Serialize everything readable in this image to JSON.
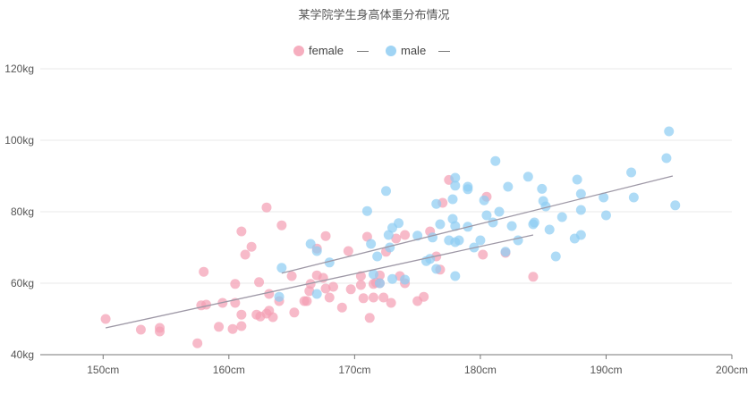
{
  "chart_data": {
    "type": "scatter",
    "title": "某学院学生身高体重分布情况",
    "xlabel": "",
    "ylabel": "",
    "x_unit": "cm",
    "y_unit": "kg",
    "xlim": [
      145,
      200
    ],
    "ylim": [
      40,
      120
    ],
    "x_ticks": [
      150,
      160,
      170,
      180,
      190,
      200
    ],
    "y_ticks": [
      40,
      60,
      80,
      100,
      120
    ],
    "x_tick_labels": [
      "150cm",
      "160cm",
      "170cm",
      "180cm",
      "190cm",
      "200cm"
    ],
    "y_tick_labels": [
      "40kg",
      "60kg",
      "80kg",
      "100kg",
      "120kg"
    ],
    "grid": "horizontal",
    "legend_position": "top-center",
    "legend_line_symbol": "—",
    "series": [
      {
        "name": "female",
        "color": "#f4a0b4",
        "trendline": {
          "x": [
            150.2,
            184.2
          ],
          "y": [
            47.5,
            73.5
          ]
        },
        "points": [
          [
            150.2,
            50.0
          ],
          [
            153.0,
            47.0
          ],
          [
            154.5,
            47.5
          ],
          [
            154.5,
            46.5
          ],
          [
            157.5,
            43.2
          ],
          [
            158.0,
            63.2
          ],
          [
            157.8,
            53.8
          ],
          [
            158.2,
            54.0
          ],
          [
            159.2,
            47.8
          ],
          [
            159.5,
            54.5
          ],
          [
            160.3,
            47.2
          ],
          [
            160.5,
            54.5
          ],
          [
            160.5,
            59.8
          ],
          [
            161.0,
            51.2
          ],
          [
            161.0,
            48.0
          ],
          [
            161.0,
            74.5
          ],
          [
            161.3,
            68.0
          ],
          [
            161.8,
            70.2
          ],
          [
            162.2,
            51.2
          ],
          [
            162.4,
            60.3
          ],
          [
            162.5,
            50.7
          ],
          [
            163.0,
            51.5
          ],
          [
            163.0,
            81.2
          ],
          [
            163.2,
            52.3
          ],
          [
            163.2,
            57.0
          ],
          [
            163.5,
            50.5
          ],
          [
            164.0,
            55.0
          ],
          [
            164.2,
            76.2
          ],
          [
            165.0,
            62.0
          ],
          [
            165.2,
            51.8
          ],
          [
            166.0,
            55.0
          ],
          [
            166.2,
            55.0
          ],
          [
            166.4,
            57.8
          ],
          [
            166.5,
            59.8
          ],
          [
            167.0,
            69.7
          ],
          [
            167.0,
            62.2
          ],
          [
            167.5,
            61.5
          ],
          [
            167.7,
            73.2
          ],
          [
            167.7,
            58.5
          ],
          [
            168.0,
            56.0
          ],
          [
            168.3,
            59.0
          ],
          [
            169.0,
            53.2
          ],
          [
            169.5,
            69.0
          ],
          [
            169.7,
            58.3
          ],
          [
            170.5,
            59.5
          ],
          [
            170.5,
            62.0
          ],
          [
            170.7,
            55.8
          ],
          [
            171.0,
            73.0
          ],
          [
            171.2,
            50.3
          ],
          [
            171.5,
            59.8
          ],
          [
            171.5,
            56.0
          ],
          [
            171.7,
            60.2
          ],
          [
            172.0,
            62.2
          ],
          [
            172.0,
            60.0
          ],
          [
            172.3,
            56.0
          ],
          [
            172.5,
            68.8
          ],
          [
            172.9,
            54.5
          ],
          [
            173.3,
            72.5
          ],
          [
            173.6,
            62.0
          ],
          [
            174.0,
            73.5
          ],
          [
            174.0,
            60.0
          ],
          [
            175.0,
            55.0
          ],
          [
            175.5,
            56.2
          ],
          [
            176.0,
            74.5
          ],
          [
            176.5,
            67.5
          ],
          [
            176.8,
            63.8
          ],
          [
            177.0,
            82.5
          ],
          [
            177.5,
            88.9
          ],
          [
            180.2,
            68.0
          ],
          [
            180.5,
            84.2
          ],
          [
            182.0,
            68.5
          ],
          [
            184.2,
            61.8
          ]
        ]
      },
      {
        "name": "male",
        "color": "#8fcdf2",
        "trendline": {
          "x": [
            164.2,
            195.3
          ],
          "y": [
            62.8,
            90.0
          ]
        },
        "points": [
          [
            164.2,
            64.3
          ],
          [
            164.0,
            56.2
          ],
          [
            166.5,
            71.0
          ],
          [
            167.0,
            69.0
          ],
          [
            167.0,
            57.0
          ],
          [
            168.0,
            65.8
          ],
          [
            171.0,
            80.2
          ],
          [
            171.3,
            71.0
          ],
          [
            171.5,
            62.5
          ],
          [
            172.0,
            60.0
          ],
          [
            171.8,
            67.5
          ],
          [
            172.5,
            85.8
          ],
          [
            172.7,
            73.5
          ],
          [
            172.8,
            70.0
          ],
          [
            173.0,
            75.5
          ],
          [
            173.0,
            61.2
          ],
          [
            173.5,
            76.8
          ],
          [
            174.0,
            61.0
          ],
          [
            175.0,
            73.3
          ],
          [
            175.7,
            66.2
          ],
          [
            176.0,
            66.8
          ],
          [
            176.2,
            72.8
          ],
          [
            176.5,
            82.2
          ],
          [
            176.5,
            64.0
          ],
          [
            176.8,
            76.5
          ],
          [
            177.5,
            72.0
          ],
          [
            177.8,
            83.5
          ],
          [
            177.8,
            78.0
          ],
          [
            178.0,
            89.5
          ],
          [
            178.0,
            87.3
          ],
          [
            178.0,
            76.0
          ],
          [
            178.0,
            71.5
          ],
          [
            178.0,
            62.0
          ],
          [
            178.3,
            72.0
          ],
          [
            179.0,
            87.0
          ],
          [
            179.0,
            86.3
          ],
          [
            179.0,
            75.8
          ],
          [
            179.5,
            70.0
          ],
          [
            180.0,
            72.0
          ],
          [
            180.3,
            83.2
          ],
          [
            180.5,
            79.0
          ],
          [
            181.0,
            77.0
          ],
          [
            181.2,
            94.2
          ],
          [
            181.5,
            80.0
          ],
          [
            182.0,
            68.8
          ],
          [
            182.2,
            87.0
          ],
          [
            182.5,
            76.0
          ],
          [
            183.0,
            72.0
          ],
          [
            183.8,
            89.8
          ],
          [
            184.2,
            76.5
          ],
          [
            184.3,
            77.0
          ],
          [
            184.9,
            86.4
          ],
          [
            185.0,
            83.0
          ],
          [
            185.2,
            81.5
          ],
          [
            185.5,
            75.0
          ],
          [
            186.0,
            67.5
          ],
          [
            186.5,
            78.5
          ],
          [
            187.5,
            72.5
          ],
          [
            187.7,
            89.0
          ],
          [
            188.0,
            85.0
          ],
          [
            188.0,
            80.5
          ],
          [
            188.0,
            73.5
          ],
          [
            189.8,
            84.0
          ],
          [
            190.0,
            79.0
          ],
          [
            192.0,
            91.0
          ],
          [
            192.2,
            84.0
          ],
          [
            194.8,
            95.0
          ],
          [
            195.0,
            102.5
          ],
          [
            195.5,
            81.8
          ]
        ]
      }
    ]
  }
}
